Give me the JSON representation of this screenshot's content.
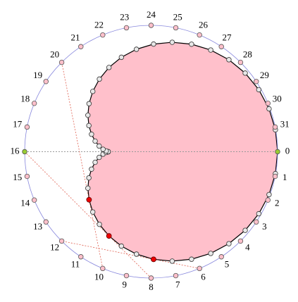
{
  "labels": [
    "0",
    "1",
    "2",
    "3",
    "4",
    "5",
    "6",
    "7",
    "8",
    "9",
    "10",
    "11",
    "12",
    "13",
    "14",
    "15",
    "16",
    "17",
    "18",
    "19",
    "20",
    "21",
    "22",
    "23",
    "24",
    "25",
    "26",
    "27",
    "28",
    "29",
    "30",
    "31"
  ]
}
